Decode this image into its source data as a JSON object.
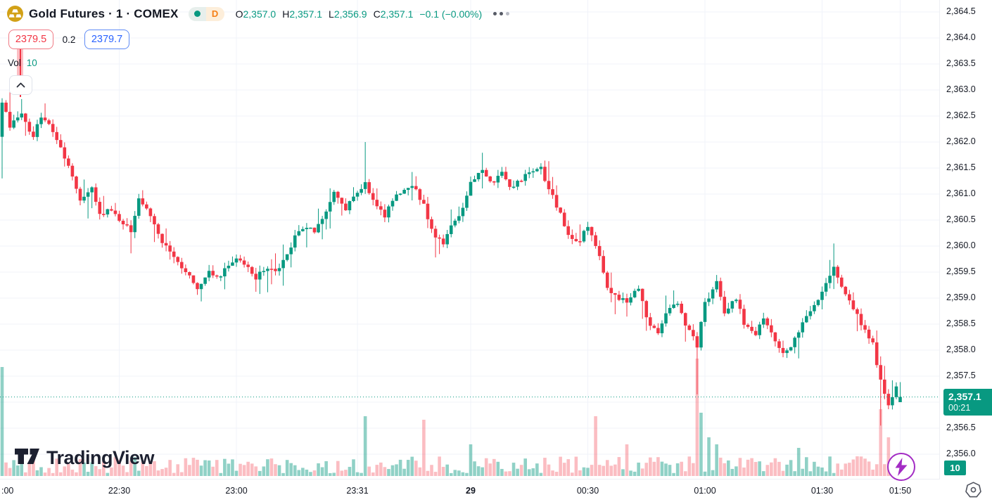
{
  "header": {
    "symbol_title": "Gold Futures · 1 · COMEX",
    "interval_badge": "D",
    "ohlc": {
      "o_label": "O",
      "o": "2,357.0",
      "h_label": "H",
      "h": "2,357.1",
      "l_label": "L",
      "l": "2,356.9",
      "c_label": "C",
      "c": "2,357.1",
      "change": "−0.1 (−0.00%)"
    }
  },
  "trade_panel": {
    "sell_price": "2379.5",
    "spread": "0.2",
    "buy_price": "2379.7"
  },
  "volume_indicator": {
    "label": "Vol",
    "value": "10"
  },
  "price_label": {
    "price": "2,357.1",
    "countdown": "00:21"
  },
  "volume_axis_badge": "10",
  "logo": {
    "text": "TradingView"
  },
  "colors": {
    "up": "#089981",
    "down": "#f23645",
    "vol_up": "rgba(8,153,129,0.45)",
    "vol_down": "rgba(242,54,69,0.33)",
    "grid": "#f0f3fa",
    "text": "#131722",
    "buy_blue": "#2962ff",
    "sell_red": "#f23645",
    "flash_purple": "#a32cc4",
    "gold_icon": "#d2a117",
    "interval_orange": "#f57f17"
  },
  "chart_data": {
    "type": "candlestick",
    "symbol": "Gold Futures",
    "exchange": "COMEX",
    "interval": "1 minute",
    "current_bar": {
      "open": 2357.0,
      "high": 2357.1,
      "low": 2356.9,
      "close": 2357.1,
      "change": -0.1,
      "change_pct": 0.0
    },
    "last_price": 2357.1,
    "price_range": [
      2356.0,
      2364.5
    ],
    "y_axis_labels": [
      "2,364.5",
      "2,364.0",
      "2,363.5",
      "2,363.0",
      "2,362.5",
      "2,362.0",
      "2,361.5",
      "2,361.0",
      "2,360.5",
      "2,360.0",
      "2,359.5",
      "2,359.0",
      "2,358.5",
      "2,358.0",
      "2,357.5",
      "2,356.5",
      "2,356.0"
    ],
    "x_ticks": [
      {
        "label": ":00",
        "m": 0,
        "grid": false,
        "edge": true
      },
      {
        "label": "22:30",
        "m": 30,
        "grid": true
      },
      {
        "label": "23:00",
        "m": 60,
        "grid": true
      },
      {
        "label": "23:31",
        "m": 91,
        "grid": true
      },
      {
        "label": "29",
        "m": 120,
        "grid": true,
        "bold": true
      },
      {
        "label": "00:30",
        "m": 150,
        "grid": true
      },
      {
        "label": "01:00",
        "m": 180,
        "grid": true
      },
      {
        "label": "01:30",
        "m": 210,
        "grid": true
      },
      {
        "label": "01:50",
        "m": 230,
        "grid": true
      }
    ],
    "close_anchors": [
      [
        0,
        2362.8
      ],
      [
        2,
        2362.3
      ],
      [
        5,
        2362.5
      ],
      [
        8,
        2362.1
      ],
      [
        10,
        2362.5
      ],
      [
        13,
        2362.2
      ],
      [
        15,
        2361.9
      ],
      [
        18,
        2361.3
      ],
      [
        20,
        2360.9
      ],
      [
        23,
        2361.1
      ],
      [
        25,
        2360.6
      ],
      [
        28,
        2360.7
      ],
      [
        30,
        2360.5
      ],
      [
        33,
        2360.3
      ],
      [
        35,
        2360.9
      ],
      [
        38,
        2360.6
      ],
      [
        40,
        2360.2
      ],
      [
        43,
        2359.9
      ],
      [
        45,
        2359.7
      ],
      [
        48,
        2359.4
      ],
      [
        50,
        2359.2
      ],
      [
        53,
        2359.5
      ],
      [
        55,
        2359.4
      ],
      [
        58,
        2359.6
      ],
      [
        60,
        2359.8
      ],
      [
        63,
        2359.6
      ],
      [
        65,
        2359.4
      ],
      [
        68,
        2359.6
      ],
      [
        70,
        2359.5
      ],
      [
        73,
        2359.8
      ],
      [
        75,
        2360.2
      ],
      [
        78,
        2360.4
      ],
      [
        80,
        2360.3
      ],
      [
        83,
        2360.7
      ],
      [
        85,
        2361.0
      ],
      [
        88,
        2360.7
      ],
      [
        90,
        2361.0
      ],
      [
        93,
        2361.2
      ],
      [
        95,
        2360.9
      ],
      [
        98,
        2360.6
      ],
      [
        100,
        2360.9
      ],
      [
        103,
        2361.1
      ],
      [
        105,
        2361.2
      ],
      [
        108,
        2360.8
      ],
      [
        110,
        2360.3
      ],
      [
        113,
        2360.0
      ],
      [
        115,
        2360.4
      ],
      [
        118,
        2360.7
      ],
      [
        120,
        2361.2
      ],
      [
        123,
        2361.5
      ],
      [
        125,
        2361.2
      ],
      [
        128,
        2361.4
      ],
      [
        130,
        2361.1
      ],
      [
        133,
        2361.3
      ],
      [
        135,
        2361.4
      ],
      [
        138,
        2361.5
      ],
      [
        140,
        2361.1
      ],
      [
        143,
        2360.6
      ],
      [
        145,
        2360.2
      ],
      [
        148,
        2360.1
      ],
      [
        150,
        2360.4
      ],
      [
        153,
        2359.8
      ],
      [
        155,
        2359.2
      ],
      [
        158,
        2359.0
      ],
      [
        160,
        2358.9
      ],
      [
        163,
        2359.2
      ],
      [
        165,
        2358.6
      ],
      [
        168,
        2358.3
      ],
      [
        170,
        2358.7
      ],
      [
        173,
        2358.9
      ],
      [
        175,
        2358.5
      ],
      [
        178,
        2358.1
      ],
      [
        180,
        2358.9
      ],
      [
        183,
        2359.3
      ],
      [
        185,
        2358.7
      ],
      [
        188,
        2359.0
      ],
      [
        190,
        2358.5
      ],
      [
        193,
        2358.3
      ],
      [
        195,
        2358.6
      ],
      [
        198,
        2358.2
      ],
      [
        200,
        2357.9
      ],
      [
        203,
        2358.2
      ],
      [
        205,
        2358.5
      ],
      [
        208,
        2358.9
      ],
      [
        210,
        2359.1
      ],
      [
        213,
        2359.6
      ],
      [
        215,
        2359.2
      ],
      [
        218,
        2358.8
      ],
      [
        220,
        2358.5
      ],
      [
        223,
        2358.1
      ],
      [
        225,
        2357.4
      ],
      [
        227,
        2356.9
      ],
      [
        229,
        2357.3
      ],
      [
        230,
        2357.1
      ]
    ],
    "overrides": {
      "0": {
        "open": 2362.1,
        "low": 2361.3
      },
      "93": {
        "high": 2362.0
      },
      "178": {
        "low": 2357.15
      },
      "213": {
        "high": 2360.05
      },
      "225": {
        "low": 2356.55
      },
      "230": {
        "open": 2357.0,
        "close": 2357.1
      }
    },
    "volume_spikes": {
      "0": 155,
      "93": 85,
      "108": 80,
      "120": 45,
      "152": 85,
      "160": 45,
      "178": 167,
      "179": 90,
      "181": 55,
      "183": 45,
      "204": 40,
      "225": 95,
      "227": 55
    },
    "grid_on": true,
    "legend_position": "top-left"
  }
}
